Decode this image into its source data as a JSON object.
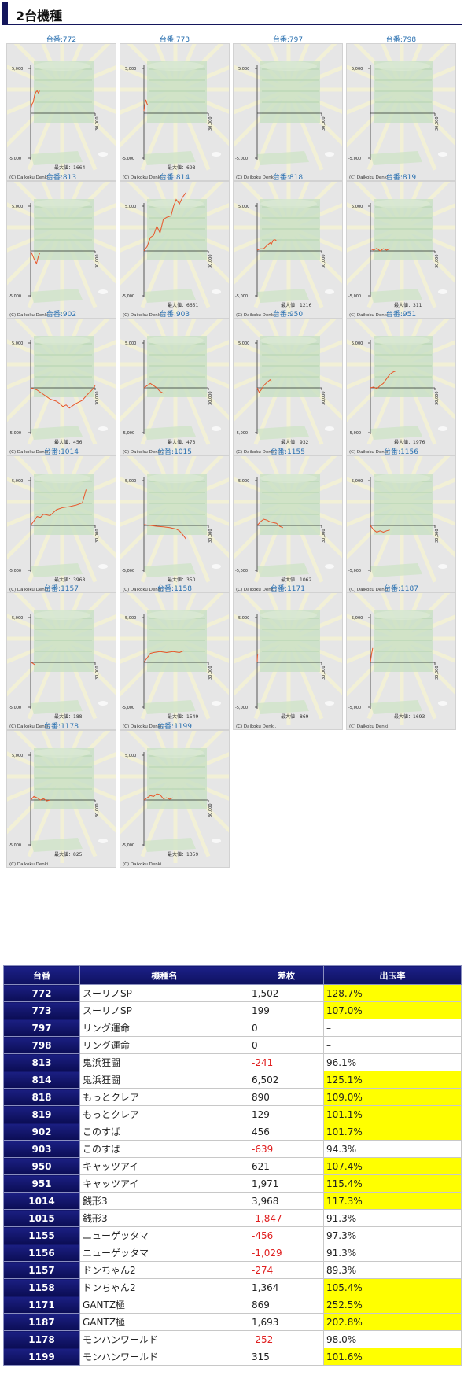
{
  "section_title": "2台機種",
  "graph_labels": {
    "y_top": "5,000",
    "y_bottom": "-5,000",
    "x_right": "30,000",
    "max_prefix": "最大値：",
    "copyright": "(C) Daikoku Denki."
  },
  "graphs": [
    {
      "label": "台番:772",
      "max": "1664",
      "pts": [
        [
          0,
          0.08
        ],
        [
          0.02,
          0.2
        ],
        [
          0.04,
          0.25
        ],
        [
          0.06,
          0.4
        ],
        [
          0.08,
          0.47
        ],
        [
          0.1,
          0.5
        ],
        [
          0.12,
          0.45
        ],
        [
          0.14,
          0.5
        ]
      ]
    },
    {
      "label": "台番:773",
      "max": "698",
      "pts": [
        [
          0,
          0.05
        ],
        [
          0.015,
          0.2
        ],
        [
          0.03,
          0.3
        ],
        [
          0.045,
          0.22
        ],
        [
          0.06,
          0.18
        ]
      ]
    },
    {
      "label": "台番:797",
      "max": "",
      "pts": []
    },
    {
      "label": "台番:798",
      "max": "",
      "pts": []
    },
    {
      "label": "台番:813",
      "max": "",
      "pts": [
        [
          0,
          0.0
        ],
        [
          0.03,
          -0.1
        ],
        [
          0.06,
          -0.2
        ],
        [
          0.09,
          -0.28
        ],
        [
          0.1,
          -0.23
        ],
        [
          0.12,
          -0.12
        ],
        [
          0.14,
          -0.05
        ]
      ]
    },
    {
      "label": "台番:814",
      "max": "6651",
      "pts": [
        [
          0,
          0.0
        ],
        [
          0.05,
          0.1
        ],
        [
          0.1,
          0.3
        ],
        [
          0.15,
          0.35
        ],
        [
          0.2,
          0.55
        ],
        [
          0.25,
          0.4
        ],
        [
          0.3,
          0.7
        ],
        [
          0.35,
          0.75
        ],
        [
          0.42,
          0.78
        ],
        [
          0.46,
          1.0
        ],
        [
          0.5,
          1.15
        ],
        [
          0.55,
          1.05
        ],
        [
          0.6,
          1.2
        ],
        [
          0.65,
          1.3
        ]
      ]
    },
    {
      "label": "台番:818",
      "max": "1216",
      "pts": [
        [
          0,
          0.02
        ],
        [
          0.05,
          0.05
        ],
        [
          0.1,
          0.05
        ],
        [
          0.15,
          0.12
        ],
        [
          0.2,
          0.18
        ],
        [
          0.22,
          0.15
        ],
        [
          0.25,
          0.24
        ],
        [
          0.28,
          0.25
        ],
        [
          0.3,
          0.22
        ]
      ]
    },
    {
      "label": "台番:819",
      "max": "311",
      "pts": [
        [
          0,
          0.05
        ],
        [
          0.05,
          0.02
        ],
        [
          0.1,
          0.06
        ],
        [
          0.15,
          0.0
        ],
        [
          0.2,
          0.05
        ],
        [
          0.25,
          0.02
        ],
        [
          0.3,
          0.05
        ]
      ]
    },
    {
      "label": "台番:902",
      "max": "456",
      "pts": [
        [
          0,
          0.0
        ],
        [
          0.1,
          -0.05
        ],
        [
          0.2,
          -0.15
        ],
        [
          0.3,
          -0.25
        ],
        [
          0.4,
          -0.3
        ],
        [
          0.45,
          -0.35
        ],
        [
          0.5,
          -0.42
        ],
        [
          0.55,
          -0.38
        ],
        [
          0.6,
          -0.45
        ],
        [
          0.7,
          -0.35
        ],
        [
          0.8,
          -0.28
        ],
        [
          0.88,
          -0.15
        ],
        [
          0.95,
          -0.05
        ],
        [
          1.0,
          0.05
        ]
      ]
    },
    {
      "label": "台番:903",
      "max": "473",
      "pts": [
        [
          0,
          0.0
        ],
        [
          0.05,
          0.05
        ],
        [
          0.1,
          0.1
        ],
        [
          0.15,
          0.05
        ],
        [
          0.2,
          0.0
        ],
        [
          0.25,
          -0.08
        ],
        [
          0.3,
          -0.12
        ]
      ]
    },
    {
      "label": "台番:950",
      "max": "932",
      "pts": [
        [
          0,
          0.0
        ],
        [
          0.03,
          -0.1
        ],
        [
          0.06,
          -0.05
        ],
        [
          0.1,
          0.05
        ],
        [
          0.15,
          0.12
        ],
        [
          0.2,
          0.18
        ],
        [
          0.22,
          0.15
        ]
      ]
    },
    {
      "label": "台番:951",
      "max": "1976",
      "pts": [
        [
          0,
          0.0
        ],
        [
          0.05,
          0.02
        ],
        [
          0.1,
          -0.02
        ],
        [
          0.15,
          0.05
        ],
        [
          0.2,
          0.1
        ],
        [
          0.25,
          0.2
        ],
        [
          0.3,
          0.3
        ],
        [
          0.35,
          0.35
        ],
        [
          0.4,
          0.38
        ]
      ]
    },
    {
      "label": "台番:1014",
      "max": "3968",
      "pts": [
        [
          0,
          0.0
        ],
        [
          0.05,
          0.1
        ],
        [
          0.1,
          0.2
        ],
        [
          0.15,
          0.18
        ],
        [
          0.2,
          0.25
        ],
        [
          0.3,
          0.22
        ],
        [
          0.4,
          0.35
        ],
        [
          0.5,
          0.4
        ],
        [
          0.6,
          0.42
        ],
        [
          0.7,
          0.45
        ],
        [
          0.8,
          0.5
        ],
        [
          0.86,
          0.8
        ]
      ]
    },
    {
      "label": "台番:1015",
      "max": "350",
      "pts": [
        [
          0,
          0.02
        ],
        [
          0.1,
          0.0
        ],
        [
          0.2,
          -0.02
        ],
        [
          0.3,
          -0.03
        ],
        [
          0.4,
          -0.05
        ],
        [
          0.5,
          -0.08
        ],
        [
          0.55,
          -0.12
        ],
        [
          0.6,
          -0.2
        ],
        [
          0.65,
          -0.3
        ]
      ]
    },
    {
      "label": "台番:1155",
      "max": "1062",
      "pts": [
        [
          0,
          0.0
        ],
        [
          0.05,
          0.08
        ],
        [
          0.1,
          0.14
        ],
        [
          0.15,
          0.12
        ],
        [
          0.2,
          0.08
        ],
        [
          0.3,
          0.05
        ],
        [
          0.35,
          -0.02
        ],
        [
          0.4,
          -0.05
        ]
      ]
    },
    {
      "label": "台番:1156",
      "max": "",
      "pts": [
        [
          0,
          0.0
        ],
        [
          0.05,
          -0.1
        ],
        [
          0.1,
          -0.15
        ],
        [
          0.15,
          -0.12
        ],
        [
          0.2,
          -0.15
        ],
        [
          0.25,
          -0.12
        ],
        [
          0.3,
          -0.1
        ]
      ]
    },
    {
      "label": "台番:1157",
      "max": "188",
      "pts": [
        [
          0,
          0.0
        ],
        [
          0.03,
          -0.02
        ],
        [
          0.06,
          -0.05
        ]
      ]
    },
    {
      "label": "台番:1158",
      "max": "1549",
      "pts": [
        [
          0,
          0.0
        ],
        [
          0.05,
          0.1
        ],
        [
          0.1,
          0.2
        ],
        [
          0.15,
          0.22
        ],
        [
          0.25,
          0.24
        ],
        [
          0.35,
          0.22
        ],
        [
          0.45,
          0.24
        ],
        [
          0.55,
          0.22
        ],
        [
          0.62,
          0.26
        ]
      ]
    },
    {
      "label": "台番:1171",
      "max": "869",
      "pts": [
        [
          0,
          0.0
        ],
        [
          0.005,
          0.15
        ],
        [
          0.01,
          0.17
        ]
      ]
    },
    {
      "label": "台番:1187",
      "max": "1693",
      "pts": [
        [
          0,
          0.0
        ],
        [
          0.02,
          0.2
        ],
        [
          0.035,
          0.32
        ]
      ]
    },
    {
      "label": "台番:1178",
      "max": "825",
      "pts": [
        [
          0,
          0.0
        ],
        [
          0.05,
          0.08
        ],
        [
          0.1,
          0.05
        ],
        [
          0.15,
          0.0
        ],
        [
          0.2,
          0.03
        ],
        [
          0.25,
          -0.02
        ],
        [
          0.3,
          0.0
        ]
      ]
    },
    {
      "label": "台番:1199",
      "max": "1359",
      "pts": [
        [
          0,
          0.0
        ],
        [
          0.05,
          0.05
        ],
        [
          0.1,
          0.1
        ],
        [
          0.15,
          0.08
        ],
        [
          0.2,
          0.14
        ],
        [
          0.25,
          0.12
        ],
        [
          0.3,
          0.03
        ],
        [
          0.35,
          0.05
        ],
        [
          0.4,
          0.02
        ],
        [
          0.45,
          0.05
        ]
      ]
    }
  ],
  "table": {
    "headers": [
      "台番",
      "機種名",
      "差枚",
      "出玉率"
    ],
    "rows": [
      {
        "no": "772",
        "name": "スーリノSP",
        "diff": "1,502",
        "rate": "128.7%",
        "neg": false,
        "hi": true
      },
      {
        "no": "773",
        "name": "スーリノSP",
        "diff": "199",
        "rate": "107.0%",
        "neg": false,
        "hi": true
      },
      {
        "no": "797",
        "name": "リング運命",
        "diff": "0",
        "rate": "–",
        "neg": false,
        "hi": false
      },
      {
        "no": "798",
        "name": "リング運命",
        "diff": "0",
        "rate": "–",
        "neg": false,
        "hi": false
      },
      {
        "no": "813",
        "name": "鬼浜狂闘",
        "diff": "-241",
        "rate": "96.1%",
        "neg": true,
        "hi": false
      },
      {
        "no": "814",
        "name": "鬼浜狂闘",
        "diff": "6,502",
        "rate": "125.1%",
        "neg": false,
        "hi": true
      },
      {
        "no": "818",
        "name": "もっとクレア",
        "diff": "890",
        "rate": "109.0%",
        "neg": false,
        "hi": true
      },
      {
        "no": "819",
        "name": "もっとクレア",
        "diff": "129",
        "rate": "101.1%",
        "neg": false,
        "hi": true
      },
      {
        "no": "902",
        "name": "このすば",
        "diff": "456",
        "rate": "101.7%",
        "neg": false,
        "hi": true
      },
      {
        "no": "903",
        "name": "このすば",
        "diff": "-639",
        "rate": "94.3%",
        "neg": true,
        "hi": false
      },
      {
        "no": "950",
        "name": "キャッツアイ",
        "diff": "621",
        "rate": "107.4%",
        "neg": false,
        "hi": true
      },
      {
        "no": "951",
        "name": "キャッツアイ",
        "diff": "1,971",
        "rate": "115.4%",
        "neg": false,
        "hi": true
      },
      {
        "no": "1014",
        "name": "銭形3",
        "diff": "3,968",
        "rate": "117.3%",
        "neg": false,
        "hi": true
      },
      {
        "no": "1015",
        "name": "銭形3",
        "diff": "-1,847",
        "rate": "91.3%",
        "neg": true,
        "hi": false
      },
      {
        "no": "1155",
        "name": "ニューゲッタマ",
        "diff": "-456",
        "rate": "97.3%",
        "neg": true,
        "hi": false
      },
      {
        "no": "1156",
        "name": "ニューゲッタマ",
        "diff": "-1,029",
        "rate": "91.3%",
        "neg": true,
        "hi": false
      },
      {
        "no": "1157",
        "name": "ドンちゃん2",
        "diff": "-274",
        "rate": "89.3%",
        "neg": true,
        "hi": false
      },
      {
        "no": "1158",
        "name": "ドンちゃん2",
        "diff": "1,364",
        "rate": "105.4%",
        "neg": false,
        "hi": true
      },
      {
        "no": "1171",
        "name": "GANTZ極",
        "diff": "869",
        "rate": "252.5%",
        "neg": false,
        "hi": true
      },
      {
        "no": "1187",
        "name": "GANTZ極",
        "diff": "1,693",
        "rate": "202.8%",
        "neg": false,
        "hi": true
      },
      {
        "no": "1178",
        "name": "モンハンワールド",
        "diff": "-252",
        "rate": "98.0%",
        "neg": true,
        "hi": false
      },
      {
        "no": "1199",
        "name": "モンハンワールド",
        "diff": "315",
        "rate": "101.6%",
        "neg": false,
        "hi": true
      }
    ]
  },
  "colors": {
    "header": "#14165c",
    "line": "#e8562a",
    "highlight": "#ffff00",
    "negative": "#e02020",
    "link": "#2a70b0"
  }
}
